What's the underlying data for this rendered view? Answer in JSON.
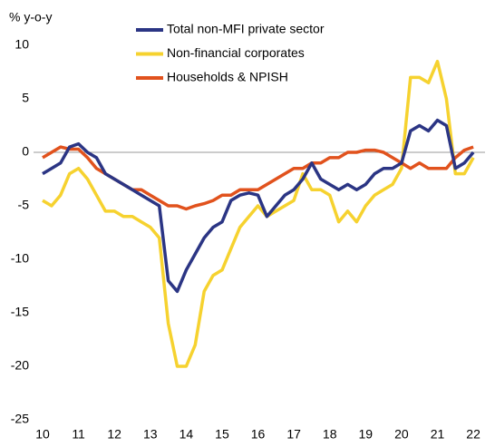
{
  "chart_data": {
    "type": "line",
    "y_label": "% y-o-y",
    "x": [
      10,
      10.25,
      10.5,
      10.75,
      11,
      11.25,
      11.5,
      11.75,
      12,
      12.25,
      12.5,
      12.75,
      13,
      13.25,
      13.5,
      13.75,
      14,
      14.25,
      14.5,
      14.75,
      15,
      15.25,
      15.5,
      15.75,
      16,
      16.25,
      16.5,
      16.75,
      17,
      17.25,
      17.5,
      17.75,
      18,
      18.25,
      18.5,
      18.75,
      19,
      19.25,
      19.5,
      19.75,
      20,
      20.25,
      20.5,
      20.75,
      21,
      21.25,
      21.5,
      21.75,
      22
    ],
    "series": [
      {
        "name": "Total non-MFI private sector",
        "color": "#2b3584",
        "values": [
          -2.0,
          -1.5,
          -1.0,
          0.5,
          0.8,
          0.0,
          -0.5,
          -2.0,
          -2.5,
          -3.0,
          -3.5,
          -4.0,
          -4.5,
          -5.0,
          -12.0,
          -13.0,
          -11.0,
          -9.5,
          -8.0,
          -7.0,
          -6.5,
          -4.5,
          -4.0,
          -3.8,
          -4.0,
          -6.0,
          -5.0,
          -4.0,
          -3.5,
          -2.5,
          -1.0,
          -2.5,
          -3.0,
          -3.5,
          -3.0,
          -3.5,
          -3.0,
          -2.0,
          -1.5,
          -1.5,
          -1.0,
          2.0,
          2.5,
          2.0,
          3.0,
          2.5,
          -1.5,
          -1.0,
          0.0
        ]
      },
      {
        "name": "Non-financial corporates",
        "color": "#f6d22f",
        "values": [
          -4.5,
          -5.0,
          -4.0,
          -2.0,
          -1.5,
          -2.5,
          -4.0,
          -5.5,
          -5.5,
          -6.0,
          -6.0,
          -6.5,
          -7.0,
          -8.0,
          -16.0,
          -20.0,
          -20.0,
          -18.0,
          -13.0,
          -11.5,
          -11.0,
          -9.0,
          -7.0,
          -6.0,
          -5.0,
          -6.0,
          -5.5,
          -5.0,
          -4.5,
          -2.0,
          -3.5,
          -3.5,
          -4.0,
          -6.5,
          -5.5,
          -6.5,
          -5.0,
          -4.0,
          -3.5,
          -3.0,
          -1.5,
          7.0,
          7.0,
          6.5,
          8.5,
          5.0,
          -2.0,
          -2.0,
          -0.5
        ]
      },
      {
        "name": "Households & NPISH",
        "color": "#e1521d",
        "values": [
          -0.5,
          0.0,
          0.5,
          0.3,
          0.3,
          -0.5,
          -1.5,
          -2.0,
          -2.5,
          -3.0,
          -3.5,
          -3.5,
          -4.0,
          -4.5,
          -5.0,
          -5.0,
          -5.3,
          -5.0,
          -4.8,
          -4.5,
          -4.0,
          -4.0,
          -3.5,
          -3.5,
          -3.5,
          -3.0,
          -2.5,
          -2.0,
          -1.5,
          -1.5,
          -1.0,
          -1.0,
          -0.5,
          -0.5,
          0.0,
          0.0,
          0.2,
          0.2,
          0.0,
          -0.5,
          -1.0,
          -1.5,
          -1.0,
          -1.5,
          -1.5,
          -1.5,
          -0.5,
          0.2,
          0.5
        ]
      }
    ],
    "xlim": [
      10,
      22.2
    ],
    "xticks": [
      10,
      11,
      12,
      13,
      14,
      15,
      16,
      17,
      18,
      19,
      20,
      21,
      22
    ],
    "ylim": [
      -25,
      10
    ],
    "yticks": [
      10,
      5,
      0,
      -5,
      -10,
      -15,
      -20,
      -25
    ],
    "zero_line": true,
    "zero_line_color": "#999999"
  }
}
